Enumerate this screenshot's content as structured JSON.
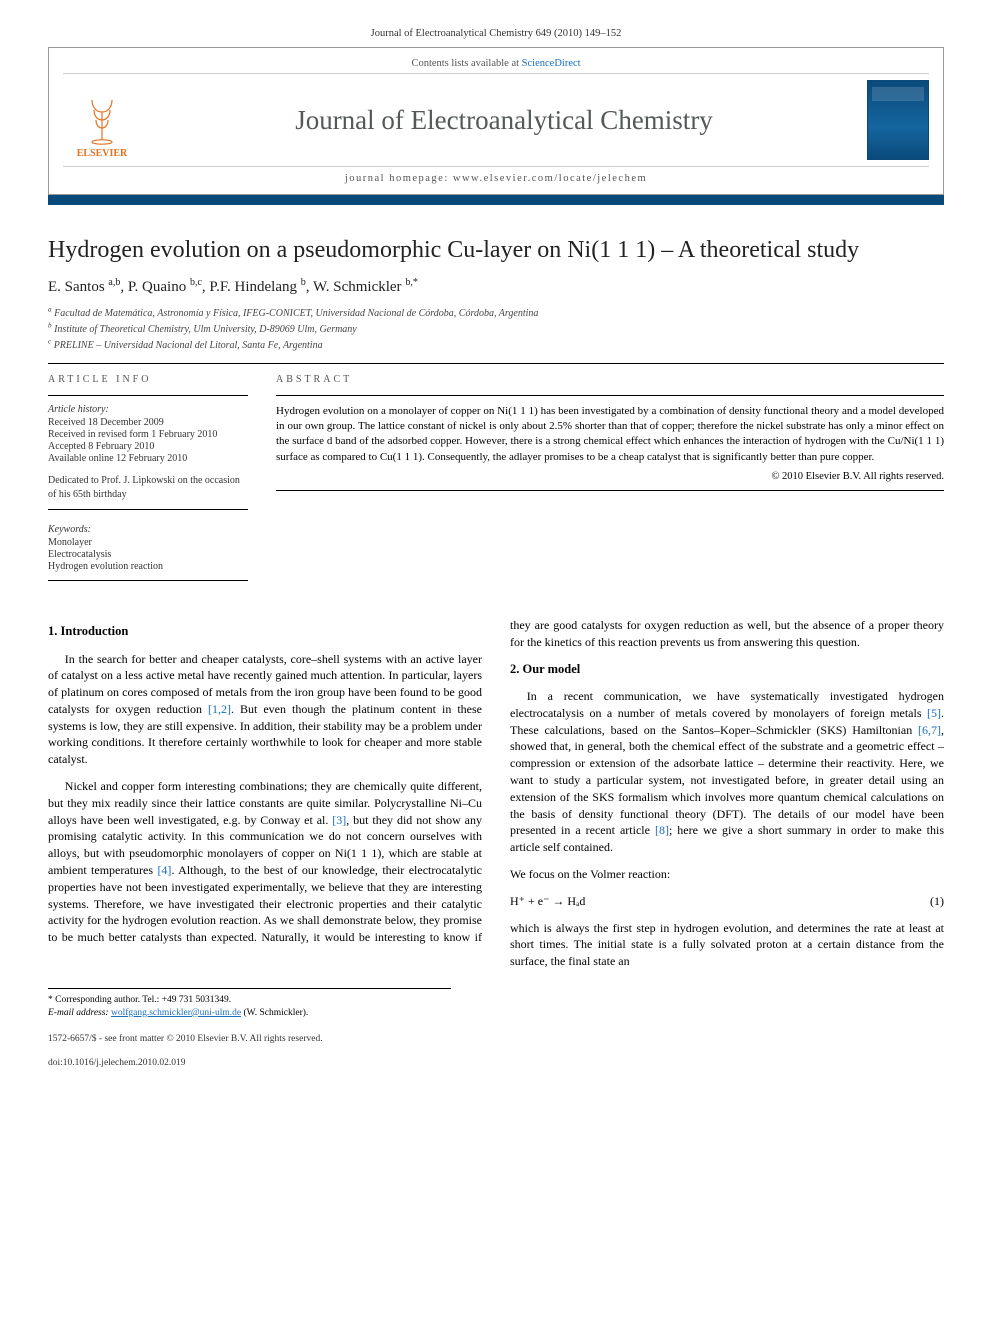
{
  "citation": "Journal of Electroanalytical Chemistry 649 (2010) 149–152",
  "header": {
    "contents_line_pre": "Contents lists available at ",
    "contents_link": "ScienceDirect",
    "journal_name": "Journal of Electroanalytical Chemistry",
    "homepage_label": "journal homepage: ",
    "homepage_url": "www.elsevier.com/locate/jelechem",
    "publisher": "ELSEVIER"
  },
  "title": "Hydrogen evolution on a pseudomorphic Cu-layer on Ni(1 1 1) – A theoretical study",
  "authors_html": "E. Santos <sup>a,b</sup>, P. Quaino <sup>b,c</sup>, P.F. Hindelang <sup>b</sup>, W. Schmickler <sup>b,*</sup>",
  "affiliations": [
    "a Facultad de Matemática, Astronomía y Física, IFEG-CONICET, Universidad Nacional de Córdoba, Córdoba, Argentina",
    "b Institute of Theoretical Chemistry, Ulm University, D-89069 Ulm, Germany",
    "c PRELINE – Universidad Nacional del Litoral, Santa Fe, Argentina"
  ],
  "article_info": {
    "heading": "ARTICLE INFO",
    "history_label": "Article history:",
    "history": [
      "Received 18 December 2009",
      "Received in revised form 1 February 2010",
      "Accepted 8 February 2010",
      "Available online 12 February 2010"
    ],
    "dedication": "Dedicated to Prof. J. Lipkowski on the occasion of his 65th birthday",
    "keywords_label": "Keywords:",
    "keywords": [
      "Monolayer",
      "Electrocatalysis",
      "Hydrogen evolution reaction"
    ]
  },
  "abstract": {
    "heading": "ABSTRACT",
    "text": "Hydrogen evolution on a monolayer of copper on Ni(1 1 1) has been investigated by a combination of density functional theory and a model developed in our own group. The lattice constant of nickel is only about 2.5% shorter than that of copper; therefore the nickel substrate has only a minor effect on the surface d band of the adsorbed copper. However, there is a strong chemical effect which enhances the interaction of hydrogen with the Cu/Ni(1 1 1) surface as compared to Cu(1 1 1). Consequently, the adlayer promises to be a cheap catalyst that is significantly better than pure copper.",
    "copyright": "© 2010 Elsevier B.V. All rights reserved."
  },
  "sections": {
    "intro": {
      "title": "1. Introduction",
      "p1": "In the search for better and cheaper catalysts, core–shell systems with an active layer of catalyst on a less active metal have recently gained much attention. In particular, layers of platinum on cores composed of metals from the iron group have been found to be good catalysts for oxygen reduction [1,2]. But even though the platinum content in these systems is low, they are still expensive. In addition, their stability may be a problem under working conditions. It therefore certainly worthwhile to look for cheaper and more stable catalyst.",
      "p2": "Nickel and copper form interesting combinations; they are chemically quite different, but they mix readily since their lattice constants are quite similar. Polycrystalline Ni–Cu alloys have been well investigated, e.g. by Conway et al. [3], but they did not show any promising catalytic activity. In this communication we do not concern ourselves with alloys, but with pseudomorphic monolayers of copper on Ni(1 1 1), which are stable at ambient temperatures [4]. Although, to the best of our knowledge, their electrocatalytic properties have not been investigated experimentally, we believe that they are interesting systems. Therefore, we have investigated their electronic properties and their catalytic activity for the hydrogen evolution reaction. As we shall demonstrate below, they promise to be much better catalysts than expected. Naturally, it would be interesting to know if they are good catalysts for oxygen reduction as well, but the absence of a proper theory for the kinetics of this reaction prevents us from answering this question."
    },
    "model": {
      "title": "2. Our model",
      "p1": "In a recent communication, we have systematically investigated hydrogen electrocatalysis on a number of metals covered by monolayers of foreign metals [5]. These calculations, based on the Santos–Koper–Schmickler (SKS) Hamiltonian [6,7], showed that, in general, both the chemical effect of the substrate and a geometric effect – compression or extension of the adsorbate lattice – determine their reactivity. Here, we want to study a particular system, not investigated before, in greater detail using an extension of the SKS formalism which involves more quantum chemical calculations on the basis of density functional theory (DFT). The details of our model have been presented in a recent article [8]; here we give a short summary in order to make this article self contained.",
      "p2": "We focus on the Volmer reaction:",
      "eq": "H⁺ + e⁻ → Hₐd",
      "eqnum": "(1)",
      "p3": "which is always the first step in hydrogen evolution, and determines the rate at least at short times. The initial state is a fully solvated proton at a certain distance from the surface, the final state an"
    }
  },
  "footnotes": {
    "corr": "* Corresponding author. Tel.: +49 731 5031349.",
    "email_label": "E-mail address:",
    "email": "wolfgang.schmickler@uni-ulm.de",
    "email_tail": " (W. Schmickler)."
  },
  "bottom": {
    "line1": "1572-6657/$ - see front matter © 2010 Elsevier B.V. All rights reserved.",
    "line2": "doi:10.1016/j.jelechem.2010.02.019"
  },
  "colors": {
    "brand_bar": "#0a4a7a",
    "link": "#1a6fbf",
    "elsevier_orange": "#e37222"
  }
}
